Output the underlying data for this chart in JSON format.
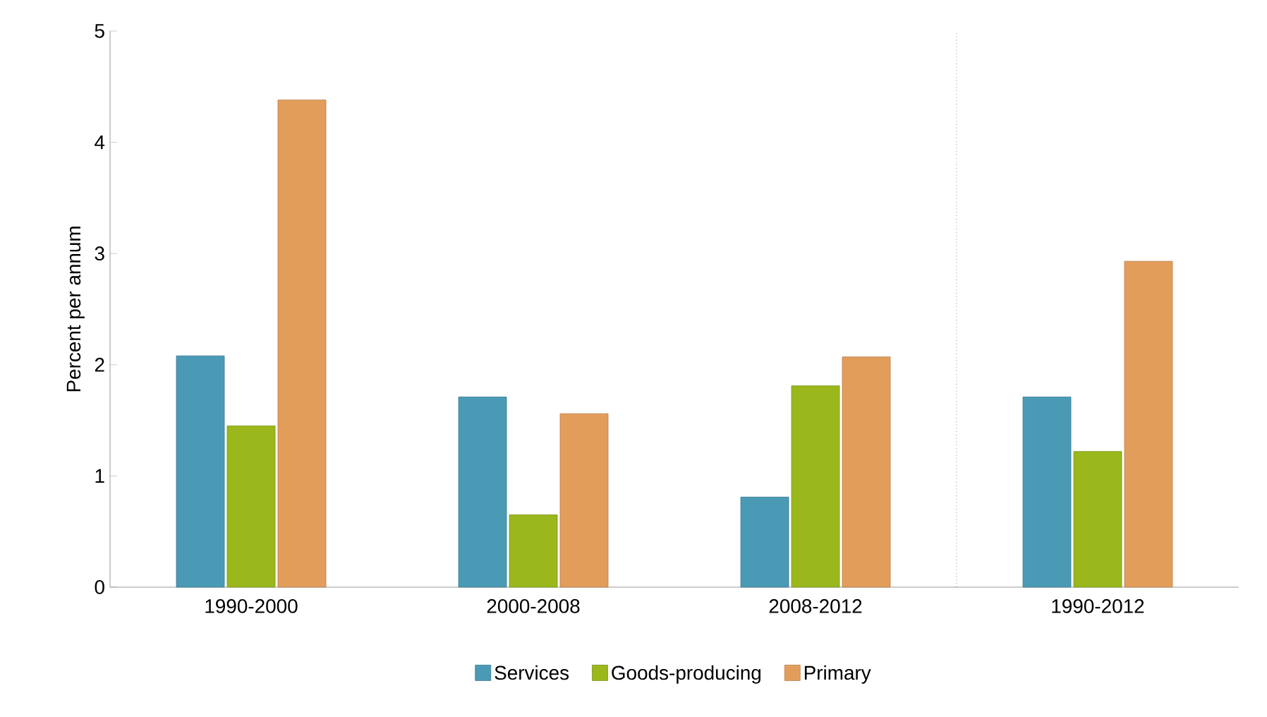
{
  "chart_data": {
    "type": "bar",
    "ylabel": "Percent per annum",
    "categories": [
      "1990-2000",
      "2000-2008",
      "2008-2012",
      "1990-2012"
    ],
    "series": [
      {
        "name": "Services",
        "color": "#4a9ab6",
        "values": [
          2.08,
          1.71,
          0.81,
          1.71
        ]
      },
      {
        "name": "Goods-producing",
        "color": "#9ab81c",
        "values": [
          1.45,
          0.65,
          1.81,
          1.22
        ]
      },
      {
        "name": "Primary",
        "color": "#e39d5b",
        "values": [
          4.38,
          1.56,
          2.07,
          2.93
        ]
      }
    ],
    "ylim": [
      0,
      5
    ],
    "yticks": [
      0,
      1,
      2,
      3,
      4,
      5
    ],
    "grid": false,
    "legend": "bottom"
  }
}
